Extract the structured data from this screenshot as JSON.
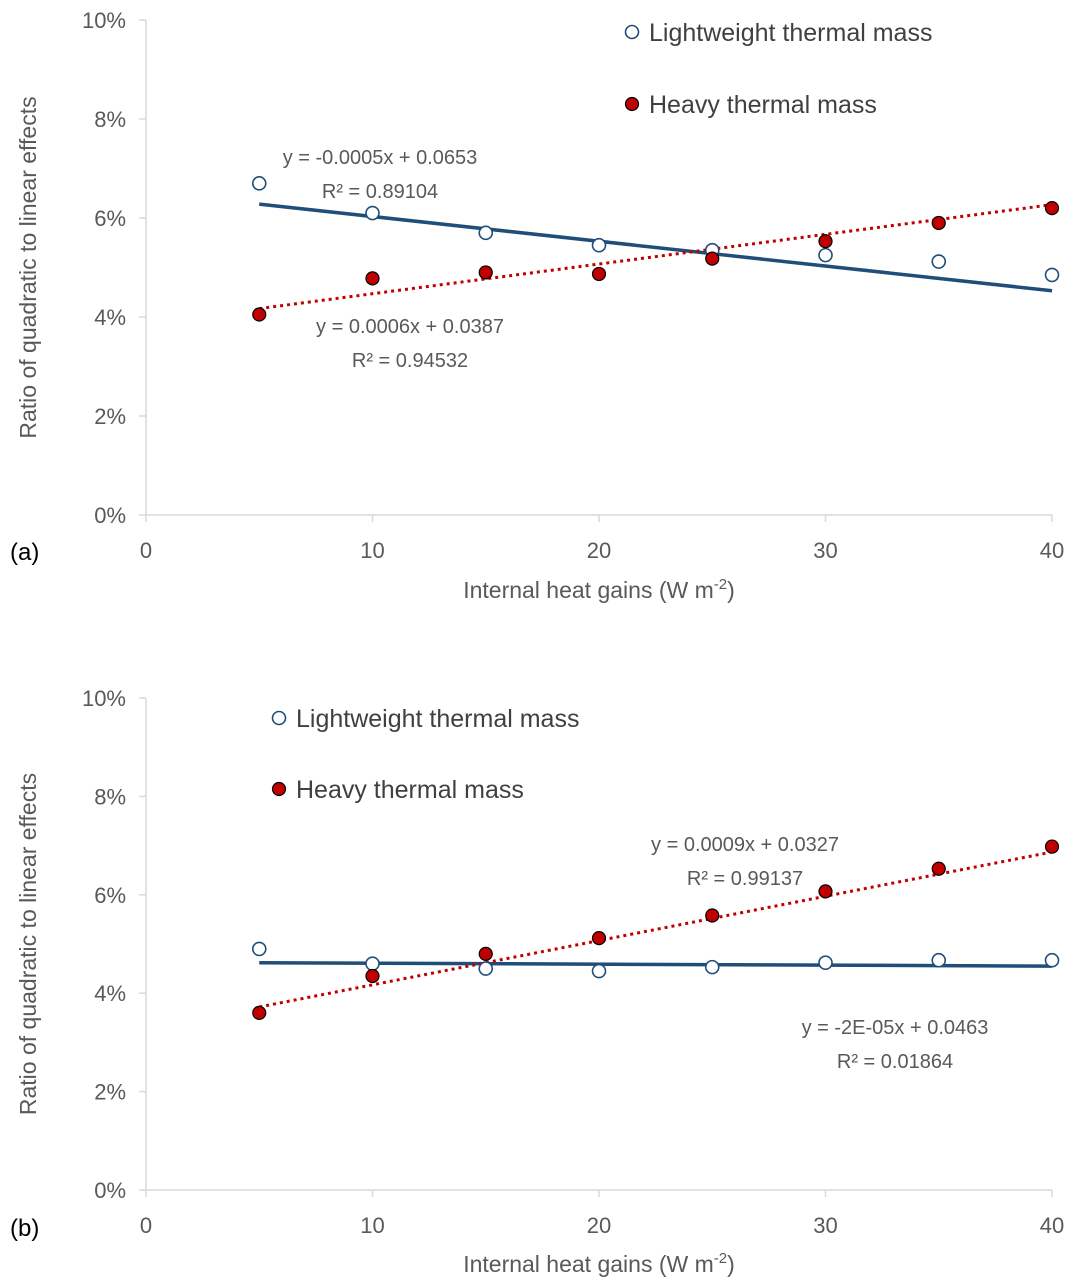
{
  "chart_data": [
    {
      "type": "scatter",
      "panel_label": "(a)",
      "xlabel": "Internal heat gains (W m",
      "xlabel_sup": "-2",
      "xlabel_end": ")",
      "ylabel": "Ratio of quadratic to linear effects",
      "xlim": [
        0,
        40
      ],
      "ylim": [
        0,
        0.1
      ],
      "x_ticks": [
        0,
        10,
        20,
        30,
        40
      ],
      "y_ticks": [
        0,
        0.02,
        0.04,
        0.06,
        0.08,
        0.1
      ],
      "y_tick_labels": [
        "0%",
        "2%",
        "4%",
        "6%",
        "8%",
        "10%"
      ],
      "x_tick_labels": [
        "0",
        "10",
        "20",
        "30",
        "40"
      ],
      "legend_position": "top-right",
      "series": [
        {
          "name": "Lightweight thermal mass",
          "marker": "open-circle",
          "color": "#1F4E79",
          "x": [
            5,
            10,
            15,
            20,
            25,
            30,
            35,
            40
          ],
          "y": [
            0.067,
            0.061,
            0.057,
            0.0545,
            0.0535,
            0.0525,
            0.0512,
            0.0485
          ],
          "trendline": {
            "slope": -0.0005,
            "intercept": 0.0653,
            "style": "solid",
            "color": "#1F4E79"
          },
          "equation": "y = -0.0005x + 0.0653",
          "r2": "R² = 0.89104"
        },
        {
          "name": "Heavy thermal mass",
          "marker": "filled-circle",
          "color": "#C00000",
          "x": [
            5,
            10,
            15,
            20,
            25,
            30,
            35,
            40
          ],
          "y": [
            0.0405,
            0.0478,
            0.049,
            0.0487,
            0.0518,
            0.0553,
            0.059,
            0.062
          ],
          "trendline": {
            "slope": 0.0006,
            "intercept": 0.0387,
            "style": "dotted",
            "color": "#C00000"
          },
          "equation": "y = 0.0006x + 0.0387",
          "r2": "R² = 0.94532"
        }
      ]
    },
    {
      "type": "scatter",
      "panel_label": "(b)",
      "xlabel": "Internal heat gains (W m",
      "xlabel_sup": "-2",
      "xlabel_end": ")",
      "ylabel": "Ratio of quadratic to linear effects",
      "xlim": [
        0,
        40
      ],
      "ylim": [
        0,
        0.1
      ],
      "x_ticks": [
        0,
        10,
        20,
        30,
        40
      ],
      "y_ticks": [
        0,
        0.02,
        0.04,
        0.06,
        0.08,
        0.1
      ],
      "y_tick_labels": [
        "0%",
        "2%",
        "4%",
        "6%",
        "8%",
        "10%"
      ],
      "x_tick_labels": [
        "0",
        "10",
        "20",
        "30",
        "40"
      ],
      "legend_position": "top-left",
      "series": [
        {
          "name": "Lightweight thermal mass",
          "marker": "open-circle",
          "color": "#1F4E79",
          "x": [
            5,
            10,
            15,
            20,
            25,
            30,
            35,
            40
          ],
          "y": [
            0.049,
            0.046,
            0.045,
            0.0445,
            0.0453,
            0.0462,
            0.0467,
            0.0467
          ],
          "trendline": {
            "slope": -2e-05,
            "intercept": 0.0463,
            "style": "solid",
            "color": "#1F4E79"
          },
          "equation": "y = -2E-05x + 0.0463",
          "r2": "R² = 0.01864"
        },
        {
          "name": "Heavy thermal mass",
          "marker": "filled-circle",
          "color": "#C00000",
          "x": [
            5,
            10,
            15,
            20,
            25,
            30,
            35,
            40
          ],
          "y": [
            0.036,
            0.0435,
            0.048,
            0.0512,
            0.0558,
            0.0607,
            0.0653,
            0.0698
          ],
          "trendline": {
            "slope": 0.0009,
            "intercept": 0.0327,
            "style": "dotted",
            "color": "#C00000"
          },
          "equation": "y = 0.0009x + 0.0327",
          "r2": "R² = 0.99137"
        }
      ]
    }
  ]
}
